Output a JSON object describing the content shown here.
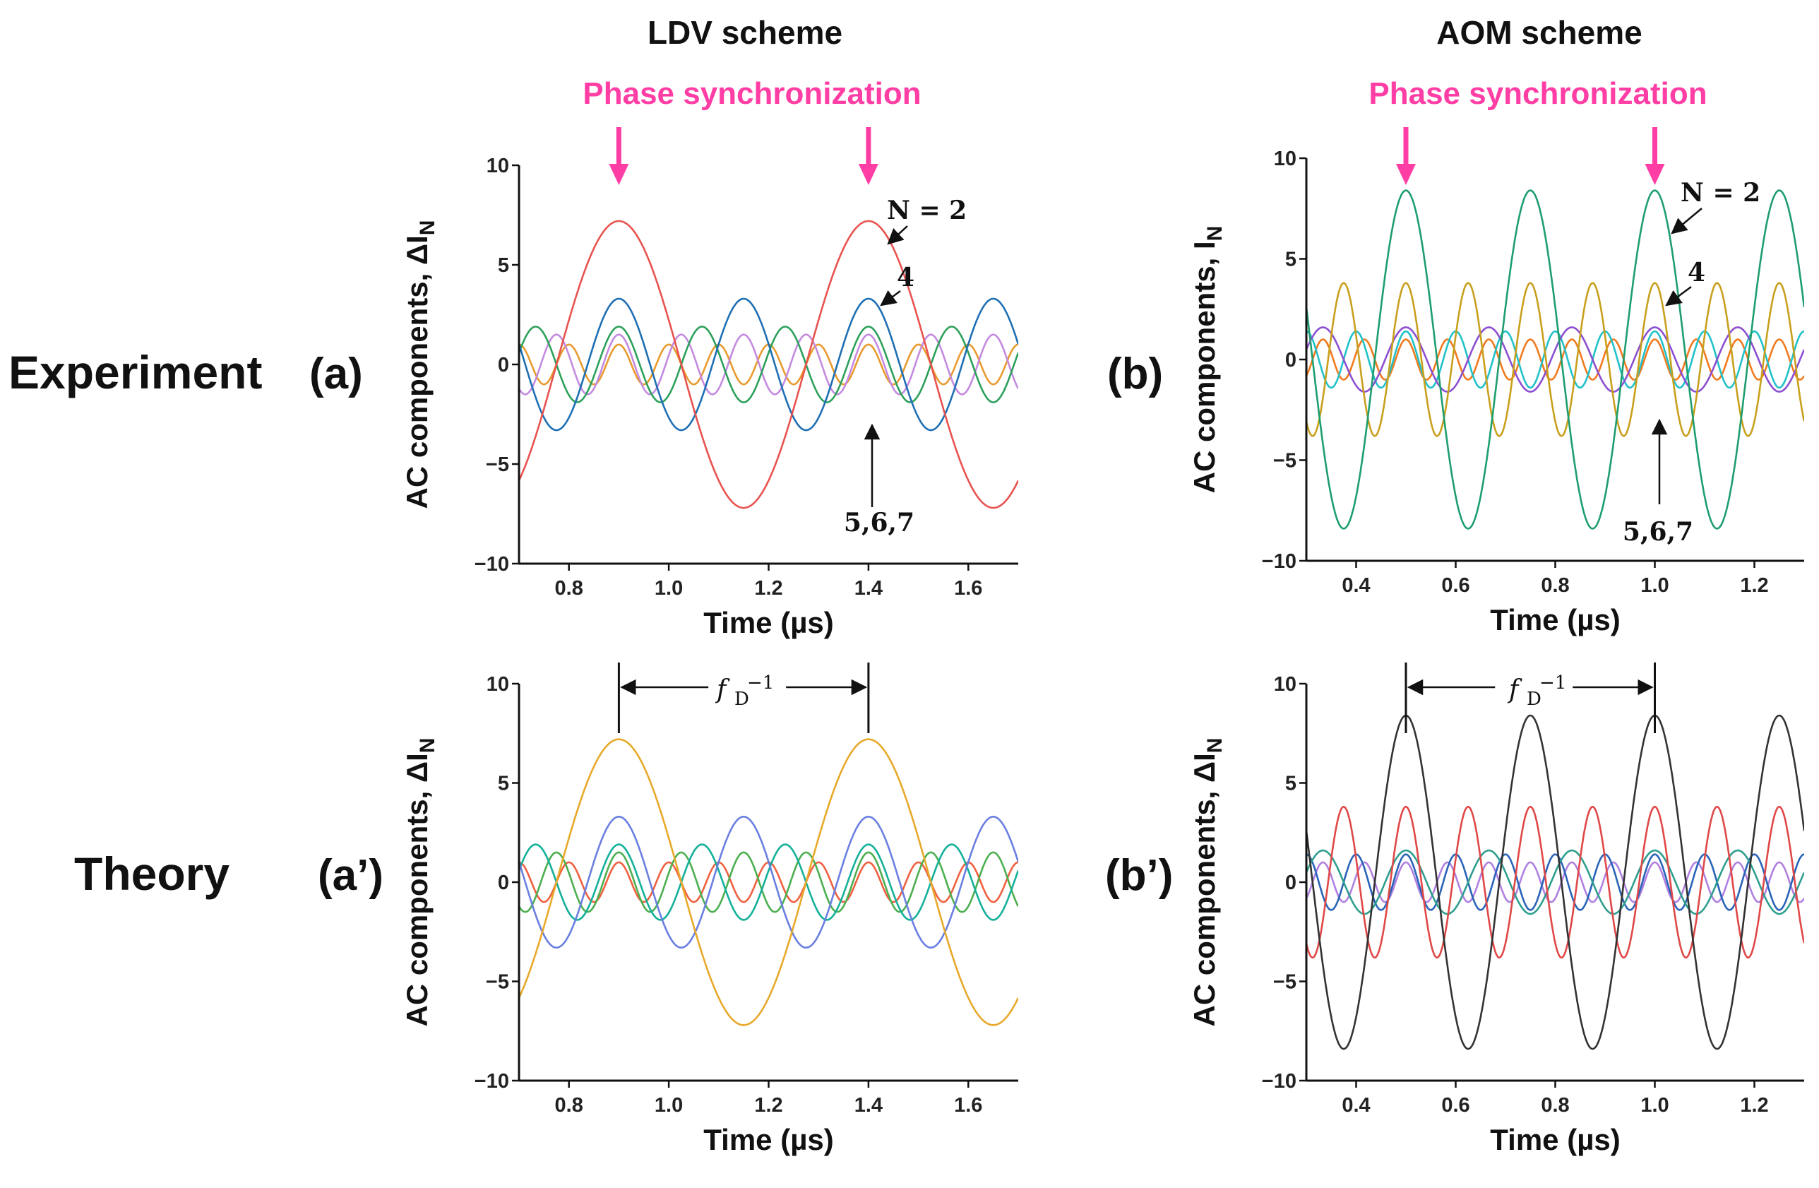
{
  "columns": {
    "left": "LDV scheme",
    "right": "AOM scheme"
  },
  "row_labels": {
    "top": "Experiment",
    "bottom": "Theory"
  },
  "sync_label": "Phase synchronization",
  "panel_labels": {
    "a": "(a)",
    "b": "(b)",
    "a2": "(a’)",
    "b2": "(b’)"
  },
  "annotations": {
    "n2": "N = 2",
    "n4": "4",
    "n567": "5,6,7",
    "period": "f",
    "period_sub": "D",
    "period_sup": "−1"
  },
  "chart_data": [
    {
      "id": "a",
      "type": "line",
      "title": "Experiment (a) - LDV scheme",
      "xlabel": "Time (µs)",
      "ylabel": "AC components, ΔI",
      "ylabel_sub": "N",
      "xlim": [
        0.7,
        1.7
      ],
      "ylim": [
        -10,
        10
      ],
      "xticks": [
        0.8,
        1.0,
        1.2,
        1.4,
        1.6
      ],
      "xticklabels": [
        "0.8",
        "1.0",
        "1.2",
        "1.4",
        "1.6"
      ],
      "yticks": [
        -10,
        -5,
        0,
        5,
        10
      ],
      "yticklabels": [
        "−10",
        "−5",
        "0",
        "5",
        "10"
      ],
      "fD": 2.0,
      "sync_times": [
        0.9,
        1.4
      ],
      "series": [
        {
          "name": "N = 2",
          "amp": 7.2,
          "harm": 1,
          "color": "#e8534f"
        },
        {
          "name": "N = 4",
          "amp": 3.3,
          "harm": 2,
          "color": "#1f6fb4"
        },
        {
          "name": "N = 5",
          "amp": 1.9,
          "harm": 3,
          "color": "#2ca05a"
        },
        {
          "name": "N = 6",
          "amp": 1.5,
          "harm": 4,
          "color": "#c48ae0"
        },
        {
          "name": "N = 7",
          "amp": 1.0,
          "harm": 5,
          "color": "#e89b2e"
        }
      ]
    },
    {
      "id": "b",
      "type": "line",
      "title": "Experiment (b) - AOM scheme",
      "xlabel": "Time (µs)",
      "ylabel": "AC components, I",
      "ylabel_sub": "N",
      "xlim": [
        0.3,
        1.3
      ],
      "ylim": [
        -10,
        10
      ],
      "xticks": [
        0.4,
        0.6,
        0.8,
        1.0,
        1.2
      ],
      "xticklabels": [
        "0.4",
        "0.6",
        "0.8",
        "1.0",
        "1.2"
      ],
      "yticks": [
        -10,
        -5,
        0,
        5,
        10
      ],
      "yticklabels": [
        "−10",
        "−5",
        "0",
        "5",
        "10"
      ],
      "fD": 2.0,
      "sync_times": [
        0.5,
        1.0
      ],
      "series": [
        {
          "name": "N = 2",
          "amp": 8.4,
          "harm": 2,
          "color": "#1e9e6e"
        },
        {
          "name": "N = 4",
          "amp": 3.8,
          "harm": 4,
          "color": "#c8a01e"
        },
        {
          "name": "N = 5",
          "amp": 1.6,
          "harm": 3,
          "color": "#8c4fd0"
        },
        {
          "name": "N = 6",
          "amp": 1.4,
          "harm": 5,
          "color": "#21c1c9"
        },
        {
          "name": "N = 7",
          "amp": 1.0,
          "harm": 6,
          "color": "#f07a1e"
        }
      ]
    },
    {
      "id": "a2",
      "type": "line",
      "title": "Theory (a') - LDV scheme",
      "xlabel": "Time (µs)",
      "ylabel": "AC components, ΔI",
      "ylabel_sub": "N",
      "xlim": [
        0.7,
        1.7
      ],
      "ylim": [
        -10,
        10
      ],
      "xticks": [
        0.8,
        1.0,
        1.2,
        1.4,
        1.6
      ],
      "xticklabels": [
        "0.8",
        "1.0",
        "1.2",
        "1.4",
        "1.6"
      ],
      "yticks": [
        -10,
        -5,
        0,
        5,
        10
      ],
      "yticklabels": [
        "−10",
        "−5",
        "0",
        "5",
        "10"
      ],
      "fD": 2.0,
      "period_marks": [
        0.9,
        1.4
      ],
      "series": [
        {
          "name": "N = 2",
          "amp": 7.2,
          "harm": 1,
          "color": "#e8a92a"
        },
        {
          "name": "N = 4",
          "amp": 3.3,
          "harm": 2,
          "color": "#6a7fe0"
        },
        {
          "name": "N = 5",
          "amp": 1.9,
          "harm": 3,
          "color": "#14b09a"
        },
        {
          "name": "N = 6",
          "amp": 1.5,
          "harm": 4,
          "color": "#4caf50"
        },
        {
          "name": "N = 7",
          "amp": 1.0,
          "harm": 5,
          "color": "#f06040"
        }
      ]
    },
    {
      "id": "b2",
      "type": "line",
      "title": "Theory (b') - AOM scheme",
      "xlabel": "Time (µs)",
      "ylabel": "AC components, ΔI",
      "ylabel_sub": "N",
      "xlim": [
        0.3,
        1.3
      ],
      "ylim": [
        -10,
        10
      ],
      "xticks": [
        0.4,
        0.6,
        0.8,
        1.0,
        1.2
      ],
      "xticklabels": [
        "0.4",
        "0.6",
        "0.8",
        "1.0",
        "1.2"
      ],
      "yticks": [
        -10,
        -5,
        0,
        5,
        10
      ],
      "yticklabels": [
        "−10",
        "−5",
        "0",
        "5",
        "10"
      ],
      "fD": 2.0,
      "period_marks": [
        0.5,
        1.0
      ],
      "series": [
        {
          "name": "N = 2",
          "amp": 8.4,
          "harm": 2,
          "color": "#333333"
        },
        {
          "name": "N = 4",
          "amp": 3.8,
          "harm": 4,
          "color": "#e04848"
        },
        {
          "name": "N = 5",
          "amp": 1.6,
          "harm": 3,
          "color": "#2e9e8e"
        },
        {
          "name": "N = 6",
          "amp": 1.4,
          "harm": 5,
          "color": "#2a64b8"
        },
        {
          "name": "N = 7",
          "amp": 1.0,
          "harm": 6,
          "color": "#b080e0"
        }
      ]
    }
  ]
}
